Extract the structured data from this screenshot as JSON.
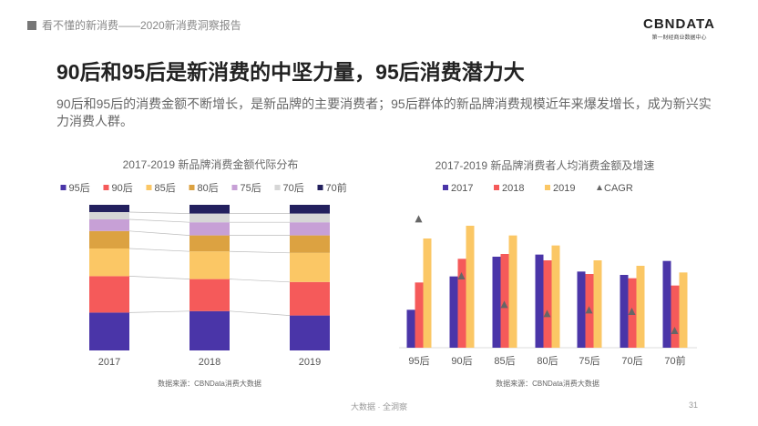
{
  "header": {
    "report_title": "看不懂的新消费——2020新消费洞察报告"
  },
  "logo": {
    "brand": "CBNDATA",
    "tagline": "第一财经商业数据中心"
  },
  "title": "90后和95后是新消费的中坚力量，95后消费潜力大",
  "subtitle": "90后和95后的消费金额不断增长，是新品牌的主要消费者；95后群体的新品牌消费规模近年来爆发增长，成为新兴实力消费人群。",
  "footer": {
    "center": "大数据 · 全洞察",
    "page": "31"
  },
  "chart_data": [
    {
      "type": "bar",
      "stacked": true,
      "normalized": true,
      "title": "2017-2019 新品牌消费金额代际分布",
      "categories": [
        "2017",
        "2018",
        "2019"
      ],
      "series": [
        {
          "name": "95后",
          "color": "#4a35a8",
          "values": [
            26,
            27,
            24
          ]
        },
        {
          "name": "90后",
          "color": "#f55a5a",
          "values": [
            25,
            22,
            23
          ]
        },
        {
          "name": "85后",
          "color": "#fbc765",
          "values": [
            19,
            19,
            20
          ]
        },
        {
          "name": "80后",
          "color": "#dca241",
          "values": [
            12,
            11,
            12
          ]
        },
        {
          "name": "75后",
          "color": "#c7a0d6",
          "values": [
            8,
            9,
            9
          ]
        },
        {
          "name": "70后",
          "color": "#d6d6d6",
          "values": [
            5,
            6,
            6
          ]
        },
        {
          "name": "70前",
          "color": "#23205e",
          "values": [
            5,
            6,
            6
          ]
        }
      ],
      "ylim": [
        0,
        100
      ],
      "legend": "top",
      "source": "数据来源：CBNData消费大数据"
    },
    {
      "type": "bar",
      "title": "2017-2019 新品牌消费者人均消费金额及增速",
      "categories": [
        "95后",
        "90后",
        "85后",
        "80后",
        "75后",
        "70后",
        "70前"
      ],
      "series": [
        {
          "name": "2017",
          "color": "#4a35a8",
          "values": [
            125,
            235,
            300,
            307,
            251,
            240,
            286
          ]
        },
        {
          "name": "2018",
          "color": "#f55a5a",
          "values": [
            215,
            293,
            309,
            288,
            243,
            229,
            205
          ]
        },
        {
          "name": "2019",
          "color": "#fbc765",
          "values": [
            360,
            402,
            370,
            337,
            288,
            270,
            248
          ]
        }
      ],
      "cagr": {
        "name": "CAGR",
        "color": "#666666",
        "values": [
          425,
          237,
          143,
          113,
          125,
          120,
          57
        ]
      },
      "ylim": [
        0,
        420
      ],
      "legend": "top",
      "note": "values are relative (no axis shown)",
      "source": "数据来源：CBNData消费大数据"
    }
  ]
}
